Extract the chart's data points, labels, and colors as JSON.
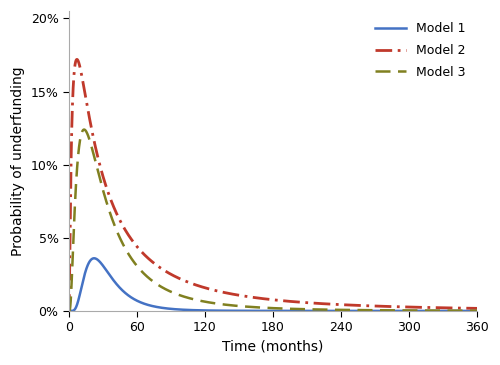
{
  "title": "",
  "xlabel": "Time (months)",
  "ylabel": "Probability of underfunding",
  "xlim": [
    0,
    360
  ],
  "ylim": [
    0,
    0.205
  ],
  "yticks": [
    0.0,
    0.05,
    0.1,
    0.15,
    0.2
  ],
  "ytick_labels": [
    "0%",
    "5%",
    "10%",
    "15%",
    "20%"
  ],
  "xticks": [
    0,
    60,
    120,
    180,
    240,
    300,
    360
  ],
  "model1": {
    "label": "Model 1",
    "color": "#4472C4",
    "linestyle": "solid",
    "linewidth": 1.8,
    "peak": 0.036,
    "peak_t": 30,
    "sigma": 0.55
  },
  "model2": {
    "label": "Model 2",
    "color": "#C0392B",
    "linestyle": "dashdot",
    "linewidth": 2.0,
    "peak": 0.172,
    "peak_t": 38,
    "sigma": 1.3
  },
  "model3": {
    "label": "Model 3",
    "color": "#808020",
    "linestyle": "dashed",
    "linewidth": 1.8,
    "peak": 0.124,
    "peak_t": 30,
    "sigma": 0.9
  },
  "legend_loc": "upper right",
  "background_color": "#ffffff",
  "figsize": [
    5.0,
    3.65
  ],
  "dpi": 100
}
